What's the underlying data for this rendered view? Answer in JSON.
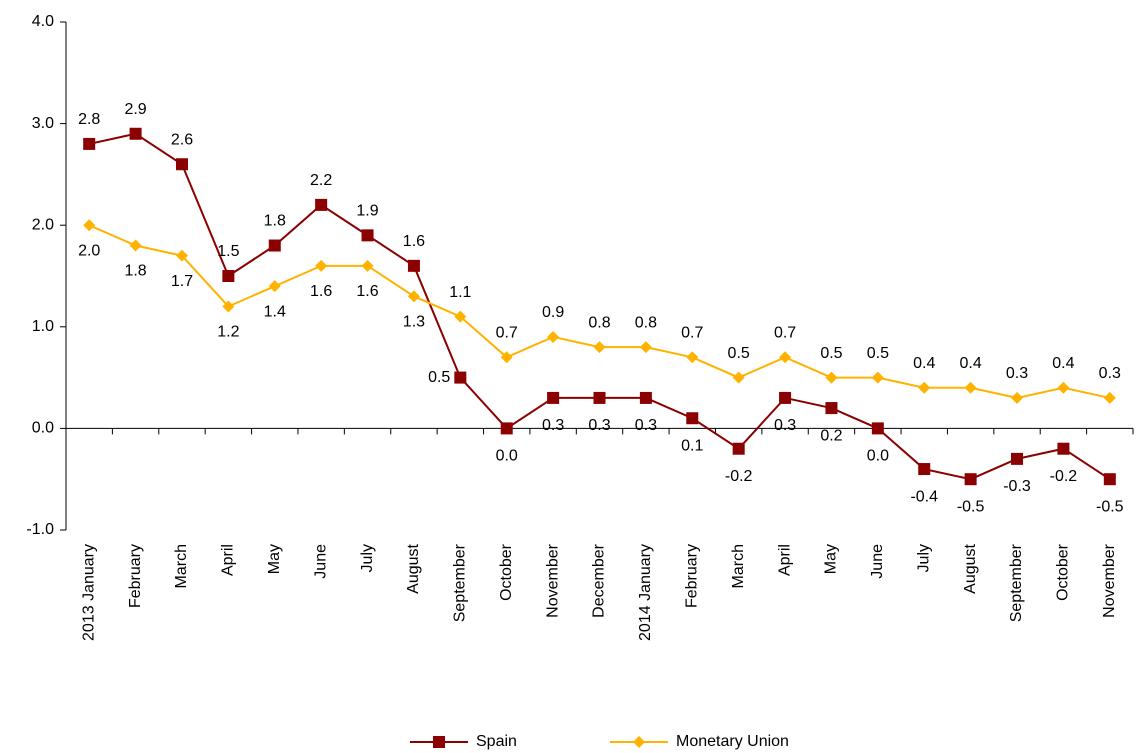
{
  "chart_data": {
    "type": "line",
    "categories": [
      "2013 January",
      "February",
      "March",
      "April",
      "May",
      "June",
      "July",
      "August",
      "September",
      "October",
      "November",
      "December",
      "2014 January",
      "February",
      "March",
      "April",
      "May",
      "June",
      "July",
      "August",
      "September",
      "October",
      "November"
    ],
    "series": [
      {
        "name": "Spain",
        "color": "#8b0000",
        "marker": "square",
        "values": [
          2.8,
          2.9,
          2.6,
          1.5,
          1.8,
          2.2,
          1.9,
          1.6,
          0.5,
          0.0,
          0.3,
          0.3,
          0.3,
          0.1,
          -0.2,
          0.3,
          0.2,
          0.0,
          -0.4,
          -0.5,
          -0.3,
          -0.2,
          -0.5
        ],
        "value_labels": [
          "2.8",
          "2.9",
          "2.6",
          "1.5",
          "1.8",
          "2.2",
          "1.9",
          "1.6",
          "0.5",
          "0.0",
          "0.3",
          "0.3",
          "0.3",
          "0.1",
          "-0.2",
          "0.3",
          "0.2",
          "0.0",
          "-0.4",
          "-0.5",
          "-0.3",
          "-0.2",
          "-0.5"
        ]
      },
      {
        "name": "Monetary Union",
        "color": "#ffb300",
        "marker": "diamond",
        "values": [
          2.0,
          1.8,
          1.7,
          1.2,
          1.4,
          1.6,
          1.6,
          1.3,
          1.1,
          0.7,
          0.9,
          0.8,
          0.8,
          0.7,
          0.5,
          0.7,
          0.5,
          0.5,
          0.4,
          0.4,
          0.3,
          0.4,
          0.3
        ],
        "value_labels": [
          "2.0",
          "1.8",
          "1.7",
          "1.2",
          "1.4",
          "1.6",
          "1.6",
          "1.3",
          "1.1",
          "0.7",
          "0.9",
          "0.8",
          "0.8",
          "0.7",
          "0.5",
          "0.7",
          "0.5",
          "0.5",
          "0.4",
          "0.4",
          "0.3",
          "0.4",
          "0.3"
        ]
      }
    ],
    "ylim": [
      -1,
      4
    ],
    "yticks": [
      {
        "value": -1,
        "label": "-1.0"
      },
      {
        "value": 0,
        "label": "0.0"
      },
      {
        "value": 1,
        "label": "1.0"
      },
      {
        "value": 2,
        "label": "2.0"
      },
      {
        "value": 3,
        "label": "3.0"
      },
      {
        "value": 4,
        "label": "4.0"
      }
    ],
    "legend": "bottom"
  }
}
